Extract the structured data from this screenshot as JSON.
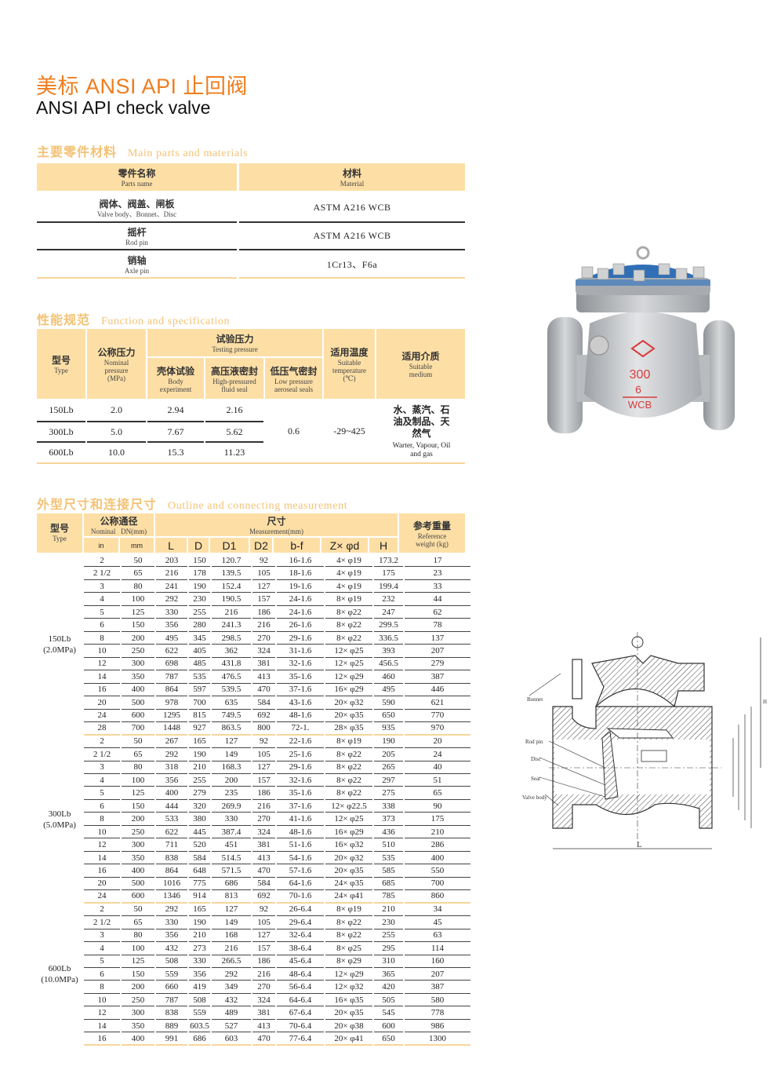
{
  "title": {
    "cn": "美标 ANSI API 止回阀",
    "en": "ANSI API check valve"
  },
  "colors": {
    "title": "#ef7d1f",
    "section": "#f4c274",
    "header_fill": "#fddfa6",
    "rule": "#333333"
  },
  "parts": {
    "heading_cn": "主要零件材料",
    "heading_en": "Main parts and materials",
    "col_name_cn": "零件名称",
    "col_name_en": "Parts name",
    "col_mat_cn": "材料",
    "col_mat_en": "Material",
    "rows": [
      {
        "cn": "阀体、阀盖、闸板",
        "en": "Valve body、Bonnet、Disc",
        "material": "ASTM  A216  WCB"
      },
      {
        "cn": "摇杆",
        "en": "Rod pin",
        "material": "ASTM  A216  WCB"
      },
      {
        "cn": "销轴",
        "en": "Axle pin",
        "material": "1Cr13、F6a"
      }
    ]
  },
  "spec": {
    "heading_cn": "性能规范",
    "heading_en": "Function and specification",
    "type_cn": "型号",
    "type_en": "Type",
    "nominal_cn": "公称压力",
    "nominal_en": "Nominal pressure (MPa)",
    "testing_cn": "试验压力",
    "testing_en": "Testing pressure",
    "body_cn": "壳体试验",
    "body_en": "Body experiment",
    "high_cn": "高压液密封",
    "high_en": "High-pressured fluid seal",
    "low_cn": "低压气密封",
    "low_en": "Low pressure aeroseal seals",
    "temp_cn": "适用温度",
    "temp_en": "Suitable temperature (℃)",
    "medium_cn": "适用介质",
    "medium_en": "Suitable medium",
    "rows": [
      {
        "type": "150Lb",
        "nominal": "2.0",
        "body": "2.94",
        "high": "2.16"
      },
      {
        "type": "300Lb",
        "nominal": "5.0",
        "body": "7.67",
        "high": "5.62"
      },
      {
        "type": "600Lb",
        "nominal": "10.0",
        "body": "15.3",
        "high": "11.23"
      }
    ],
    "low": "0.6",
    "temp": "-29~425",
    "medium_text_cn": "水、蒸汽、石油及制品、天然气",
    "medium_text_en": "Warter, Vapour, Oil and gas"
  },
  "dims": {
    "heading_cn": "外型尺寸和连接尺寸",
    "heading_en": "Outline and connecting measurement",
    "type_cn": "型号",
    "type_en": "Type",
    "nominal_cn": "公称通径",
    "nominal_en": "Nominal   DN(mm)",
    "meas_cn": "尺寸",
    "meas_en": "Measurement(mm)",
    "weight_cn": "参考重量",
    "weight_en": "Reference weight (kg)",
    "cols": [
      "in",
      "mm",
      "L",
      "D",
      "D1",
      "D2",
      "b-f",
      "Z× φd",
      "H"
    ],
    "groups": [
      {
        "type": "150Lb",
        "pressure": "(2.0MPa)",
        "rows": [
          [
            "2",
            "50",
            "203",
            "150",
            "120.7",
            "92",
            "16-1.6",
            "4× φ19",
            "173.2",
            "17"
          ],
          [
            "2 1/2",
            "65",
            "216",
            "178",
            "139.5",
            "105",
            "18-1.6",
            "4× φ19",
            "175",
            "23"
          ],
          [
            "3",
            "80",
            "241",
            "190",
            "152.4",
            "127",
            "19-1.6",
            "4× φ19",
            "199.4",
            "33"
          ],
          [
            "4",
            "100",
            "292",
            "230",
            "190.5",
            "157",
            "24-1.6",
            "8× φ19",
            "232",
            "44"
          ],
          [
            "5",
            "125",
            "330",
            "255",
            "216",
            "186",
            "24-1.6",
            "8× φ22",
            "247",
            "62"
          ],
          [
            "6",
            "150",
            "356",
            "280",
            "241.3",
            "216",
            "26-1.6",
            "8× φ22",
            "299.5",
            "78"
          ],
          [
            "8",
            "200",
            "495",
            "345",
            "298.5",
            "270",
            "29-1.6",
            "8× φ22",
            "336.5",
            "137"
          ],
          [
            "10",
            "250",
            "622",
            "405",
            "362",
            "324",
            "31-1.6",
            "12× φ25",
            "393",
            "207"
          ],
          [
            "12",
            "300",
            "698",
            "485",
            "431.8",
            "381",
            "32-1.6",
            "12× φ25",
            "456.5",
            "279"
          ],
          [
            "14",
            "350",
            "787",
            "535",
            "476.5",
            "413",
            "35-1.6",
            "12× φ29",
            "460",
            "387"
          ],
          [
            "16",
            "400",
            "864",
            "597",
            "539.5",
            "470",
            "37-1.6",
            "16× φ29",
            "495",
            "446"
          ],
          [
            "20",
            "500",
            "978",
            "700",
            "635",
            "584",
            "43-1.6",
            "20× φ32",
            "590",
            "621"
          ],
          [
            "24",
            "600",
            "1295",
            "815",
            "749.5",
            "692",
            "48-1.6",
            "20× φ35",
            "650",
            "770"
          ],
          [
            "28",
            "700",
            "1448",
            "927",
            "863.5",
            "800",
            "72-1.",
            "28× φ35",
            "935",
            "970"
          ]
        ]
      },
      {
        "type": "300Lb",
        "pressure": "(5.0MPa)",
        "rows": [
          [
            "2",
            "50",
            "267",
            "165",
            "127",
            "92",
            "22-1.6",
            "8× φ19",
            "190",
            "20"
          ],
          [
            "2 1/2",
            "65",
            "292",
            "190",
            "149",
            "105",
            "25-1.6",
            "8× φ22",
            "205",
            "24"
          ],
          [
            "3",
            "80",
            "318",
            "210",
            "168.3",
            "127",
            "29-1.6",
            "8× φ22",
            "265",
            "40"
          ],
          [
            "4",
            "100",
            "356",
            "255",
            "200",
            "157",
            "32-1.6",
            "8× φ22",
            "297",
            "51"
          ],
          [
            "5",
            "125",
            "400",
            "279",
            "235",
            "186",
            "35-1.6",
            "8× φ22",
            "275",
            "65"
          ],
          [
            "6",
            "150",
            "444",
            "320",
            "269.9",
            "216",
            "37-1.6",
            "12× φ22.5",
            "338",
            "90"
          ],
          [
            "8",
            "200",
            "533",
            "380",
            "330",
            "270",
            "41-1.6",
            "12× φ25",
            "373",
            "175"
          ],
          [
            "10",
            "250",
            "622",
            "445",
            "387.4",
            "324",
            "48-1.6",
            "16× φ29",
            "436",
            "210"
          ],
          [
            "12",
            "300",
            "711",
            "520",
            "451",
            "381",
            "51-1.6",
            "16× φ32",
            "510",
            "286"
          ],
          [
            "14",
            "350",
            "838",
            "584",
            "514.5",
            "413",
            "54-1.6",
            "20× φ32",
            "535",
            "400"
          ],
          [
            "16",
            "400",
            "864",
            "648",
            "571.5",
            "470",
            "57-1.6",
            "20× φ35",
            "585",
            "550"
          ],
          [
            "20",
            "500",
            "1016",
            "775",
            "686",
            "584",
            "64-1.6",
            "24× φ35",
            "685",
            "700"
          ],
          [
            "24",
            "600",
            "1346",
            "914",
            "813",
            "692",
            "70-1.6",
            "24× φ41",
            "785",
            "860"
          ]
        ]
      },
      {
        "type": "600Lb",
        "pressure": "(10.0MPa)",
        "rows": [
          [
            "2",
            "50",
            "292",
            "165",
            "127",
            "92",
            "26-6.4",
            "8× φ19",
            "210",
            "34"
          ],
          [
            "2 1/2",
            "65",
            "330",
            "190",
            "149",
            "105",
            "29-6.4",
            "8× φ22",
            "230",
            "45"
          ],
          [
            "3",
            "80",
            "356",
            "210",
            "168",
            "127",
            "32-6.4",
            "8× φ22",
            "255",
            "63"
          ],
          [
            "4",
            "100",
            "432",
            "273",
            "216",
            "157",
            "38-6.4",
            "8× φ25",
            "295",
            "114"
          ],
          [
            "5",
            "125",
            "508",
            "330",
            "266.5",
            "186",
            "45-6.4",
            "8× φ29",
            "310",
            "160"
          ],
          [
            "6",
            "150",
            "559",
            "356",
            "292",
            "216",
            "48-6.4",
            "12× φ29",
            "365",
            "207"
          ],
          [
            "8",
            "200",
            "660",
            "419",
            "349",
            "270",
            "56-6.4",
            "12× φ32",
            "420",
            "387"
          ],
          [
            "10",
            "250",
            "787",
            "508",
            "432",
            "324",
            "64-6.4",
            "16× φ35",
            "505",
            "580"
          ],
          [
            "12",
            "300",
            "838",
            "559",
            "489",
            "381",
            "67-6.4",
            "20× φ35",
            "545",
            "778"
          ],
          [
            "14",
            "350",
            "889",
            "603.5",
            "527",
            "413",
            "70-6.4",
            "20× φ38",
            "600",
            "986"
          ],
          [
            "16",
            "400",
            "991",
            "686",
            "603",
            "470",
            "77-6.4",
            "20× φ41",
            "650",
            "1300"
          ]
        ]
      }
    ]
  },
  "photo": {
    "marking_rating": "300",
    "marking_size": "6",
    "marking_material": "WCB",
    "body_color": "#c9cbcd",
    "bonnet_color": "#2f6fb5"
  },
  "diagram": {
    "bonnet": "Bonnet",
    "rod_pin": "Rod pin",
    "disc": "Disc",
    "seat": "Seat",
    "valve_body": "Valve body",
    "length_label": "L",
    "height_label": "H"
  }
}
